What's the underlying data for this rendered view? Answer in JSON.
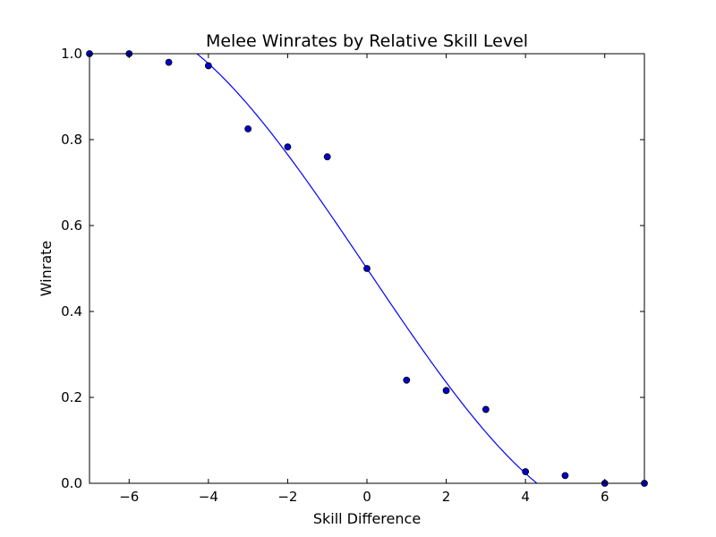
{
  "chart_data": {
    "type": "scatter",
    "title": "Melee Winrates by Relative Skill Level",
    "xlabel": "Skill Difference",
    "ylabel": "Winrate",
    "xlim": [
      -7,
      7
    ],
    "ylim": [
      0.0,
      1.0
    ],
    "grid": false,
    "legend": "none",
    "x_ticks": [
      -6,
      -4,
      -2,
      0,
      2,
      4,
      6
    ],
    "x_tick_labels": [
      "−6",
      "−4",
      "−2",
      "0",
      "2",
      "4",
      "6"
    ],
    "y_ticks": [
      0.0,
      0.2,
      0.4,
      0.6,
      0.8,
      1.0
    ],
    "y_tick_labels": [
      "0.0",
      "0.2",
      "0.4",
      "0.6",
      "0.8",
      "1.0"
    ],
    "colors": {
      "marker_fill": "#0000cc",
      "marker_edge": "#000000",
      "fit_line": "#0000ff",
      "axes": "#000000"
    },
    "series": [
      {
        "kind": "points",
        "x": [
          -7,
          -6,
          -5,
          -4,
          -3,
          -2,
          -1,
          0,
          1,
          2,
          3,
          4,
          5,
          6,
          7
        ],
        "y": [
          1.0,
          1.0,
          0.98,
          0.972,
          0.825,
          0.783,
          0.76,
          0.5,
          0.24,
          0.216,
          0.172,
          0.027,
          0.018,
          0.0,
          0.0
        ]
      },
      {
        "kind": "fit-line",
        "poly_coeffs": [
          0.5,
          -0.137,
          0.0,
          0.00111
        ]
      }
    ]
  }
}
